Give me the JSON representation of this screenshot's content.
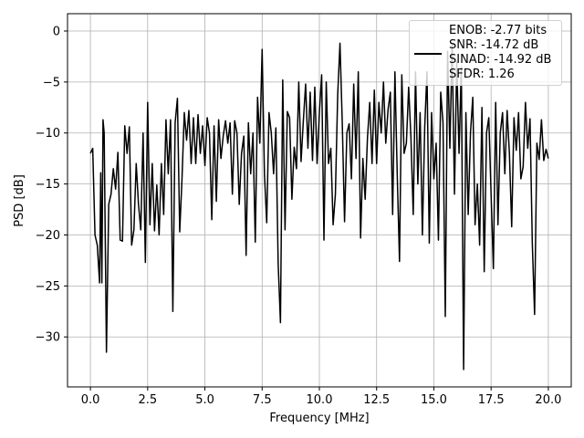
{
  "chart_data": {
    "type": "line",
    "xlabel": "Frequency [MHz]",
    "ylabel": "PSD [dB]",
    "xlim": [
      -1,
      21
    ],
    "ylim": [
      -34.9,
      1.7
    ],
    "xticks": [
      {
        "value": 0,
        "label": "0.0"
      },
      {
        "value": 2.5,
        "label": "2.5"
      },
      {
        "value": 5,
        "label": "5.0"
      },
      {
        "value": 7.5,
        "label": "7.5"
      },
      {
        "value": 10,
        "label": "10.0"
      },
      {
        "value": 12.5,
        "label": "12.5"
      },
      {
        "value": 15,
        "label": "15.0"
      },
      {
        "value": 17.5,
        "label": "17.5"
      },
      {
        "value": 20,
        "label": "20.0"
      }
    ],
    "yticks": [
      0,
      {
        "value": -5,
        "label": "−5"
      },
      {
        "value": -10,
        "label": "−10"
      },
      {
        "value": -15,
        "label": "−15"
      },
      {
        "value": -20,
        "label": "−20"
      },
      {
        "value": -25,
        "label": "−25"
      },
      {
        "value": -30,
        "label": "−30"
      }
    ],
    "grid": true,
    "legend": "upper right",
    "x": [
      0,
      0.1,
      0.2,
      0.3,
      0.4,
      0.45,
      0.5,
      0.55,
      0.6,
      0.7,
      0.8,
      0.9,
      1.0,
      1.1,
      1.2,
      1.3,
      1.4,
      1.5,
      1.6,
      1.7,
      1.8,
      1.9,
      2.0,
      2.1,
      2.2,
      2.3,
      2.4,
      2.5,
      2.6,
      2.7,
      2.8,
      2.9,
      3.0,
      3.1,
      3.2,
      3.3,
      3.4,
      3.5,
      3.6,
      3.7,
      3.8,
      3.9,
      4.0,
      4.1,
      4.2,
      4.3,
      4.4,
      4.5,
      4.6,
      4.7,
      4.8,
      4.9,
      5.0,
      5.1,
      5.2,
      5.3,
      5.4,
      5.5,
      5.6,
      5.7,
      5.8,
      5.9,
      6.0,
      6.1,
      6.2,
      6.3,
      6.4,
      6.5,
      6.6,
      6.7,
      6.8,
      6.9,
      7.0,
      7.1,
      7.2,
      7.3,
      7.4,
      7.5,
      7.6,
      7.7,
      7.8,
      7.9,
      8.0,
      8.1,
      8.2,
      8.3,
      8.4,
      8.5,
      8.6,
      8.7,
      8.8,
      8.9,
      9.0,
      9.1,
      9.2,
      9.3,
      9.4,
      9.5,
      9.6,
      9.7,
      9.8,
      9.9,
      10.0,
      10.1,
      10.2,
      10.3,
      10.4,
      10.5,
      10.6,
      10.7,
      10.8,
      10.9,
      11.0,
      11.1,
      11.2,
      11.3,
      11.4,
      11.5,
      11.6,
      11.7,
      11.8,
      11.9,
      12.0,
      12.1,
      12.2,
      12.3,
      12.4,
      12.5,
      12.6,
      12.7,
      12.8,
      12.9,
      13.0,
      13.1,
      13.2,
      13.3,
      13.4,
      13.5,
      13.6,
      13.7,
      13.8,
      13.9,
      14.0,
      14.1,
      14.2,
      14.3,
      14.4,
      14.5,
      14.6,
      14.7,
      14.8,
      14.9,
      15.0,
      15.1,
      15.2,
      15.3,
      15.4,
      15.5,
      15.6,
      15.7,
      15.8,
      15.9,
      16.0,
      16.1,
      16.2,
      16.3,
      16.4,
      16.5,
      16.6,
      16.7,
      16.8,
      16.9,
      17.0,
      17.1,
      17.2,
      17.3,
      17.4,
      17.5,
      17.6,
      17.7,
      17.8,
      17.9,
      18.0,
      18.1,
      18.2,
      18.3,
      18.4,
      18.5,
      18.6,
      18.7,
      18.8,
      18.9,
      19.0,
      19.1,
      19.2,
      19.3,
      19.4,
      19.5,
      19.6,
      19.7,
      19.8,
      19.9,
      20.0
    ],
    "series": [
      {
        "name": "ENOB: -2.77 bits\nSNR: -14.72 dB\nSINAD: -14.92 dB\nSFDR: 1.26",
        "color": "#000000",
        "values": [
          -12,
          -11.5,
          -20,
          -21,
          -24.7,
          -13.9,
          -24.7,
          -8.7,
          -10,
          -31.5,
          -17,
          -16,
          -13.5,
          -15.5,
          -11.9,
          -20.5,
          -20.6,
          -9.3,
          -12,
          -9.4,
          -21,
          -19.5,
          -13,
          -17,
          -19.5,
          -10,
          -22.7,
          -7,
          -19,
          -13,
          -19.6,
          -15.1,
          -20,
          -13,
          -18,
          -8.7,
          -14,
          -8.7,
          -27.5,
          -9,
          -6.6,
          -19.7,
          -14.5,
          -8,
          -10.7,
          -7.8,
          -13,
          -8.5,
          -13,
          -8.2,
          -12,
          -9.3,
          -13.2,
          -8.5,
          -10,
          -18.5,
          -9.3,
          -16.7,
          -8.7,
          -12.5,
          -10.3,
          -8.8,
          -11,
          -9,
          -16,
          -8.8,
          -10,
          -17,
          -12,
          -10.3,
          -22,
          -9,
          -14,
          -10,
          -20.7,
          -6.5,
          -11,
          -1.8,
          -14,
          -18.8,
          -8,
          -10,
          -14,
          -9.5,
          -22.8,
          -28.6,
          -4.8,
          -19.5,
          -7.9,
          -8.5,
          -16.5,
          -11.4,
          -13.5,
          -5,
          -12.8,
          -8.8,
          -5.2,
          -11.5,
          -6,
          -12.7,
          -5.5,
          -13,
          -8,
          -4.3,
          -20.5,
          -5,
          -13,
          -11.5,
          -19,
          -16,
          -6.3,
          -1.2,
          -9,
          -18.7,
          -10,
          -9.1,
          -14.5,
          -5.2,
          -12.5,
          -4,
          -20.3,
          -12.5,
          -16.5,
          -10.5,
          -7,
          -13,
          -5.8,
          -13,
          -7,
          -10,
          -5,
          -11,
          -7.7,
          -6,
          -18,
          -4,
          -14,
          -22.6,
          -4.3,
          -12,
          -11,
          -5.5,
          -10.5,
          -18,
          -4,
          -15,
          -8,
          -20,
          -9.5,
          -4,
          -20.8,
          -8,
          -14.5,
          -11,
          -20.5,
          -6,
          -9,
          -28,
          -2,
          -11.5,
          -1.3,
          -16,
          -3,
          -12,
          -3.5,
          -33.2,
          -8,
          -18,
          -10,
          -6.5,
          -19,
          -15,
          -21,
          -7.5,
          -23.6,
          -10,
          -8.5,
          -16,
          -23.3,
          -7,
          -19,
          -10,
          -8,
          -14,
          -7.8,
          -12,
          -19.2,
          -8.5,
          -11.7,
          -8,
          -14.5,
          -13.3,
          -7,
          -11.5,
          -8.6,
          -20.8,
          -27.8,
          -11,
          -12.6,
          -8.7,
          -12.7,
          -11.6,
          -12.5
        ]
      }
    ]
  }
}
